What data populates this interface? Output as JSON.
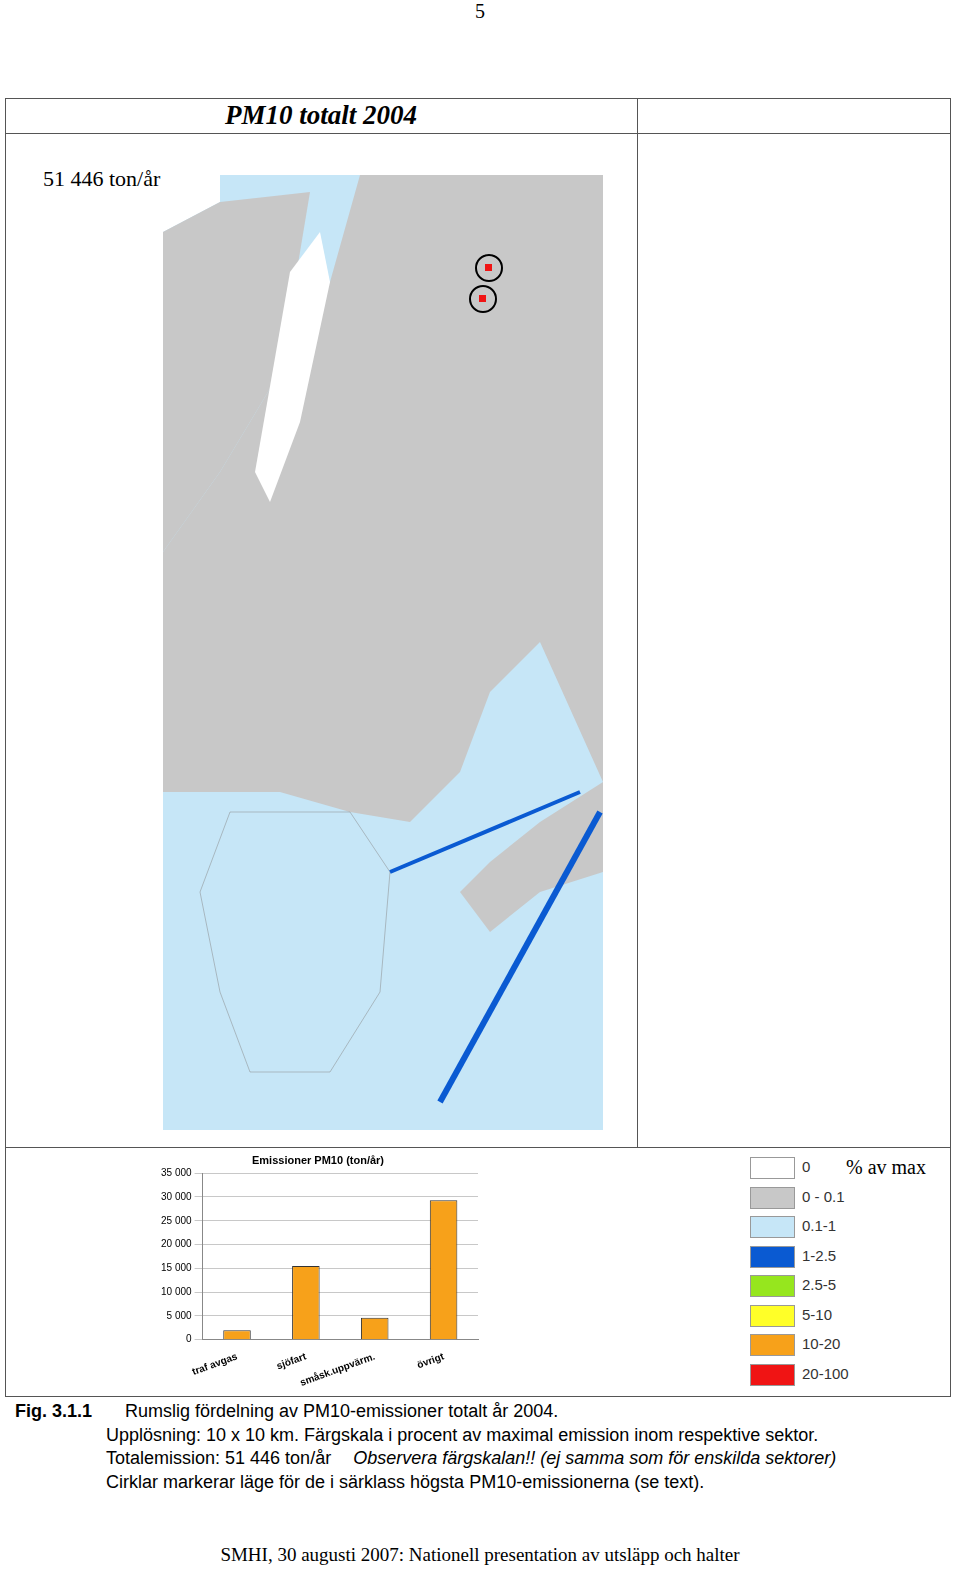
{
  "page_number": "5",
  "title": "PM10 totalt 2004",
  "total_label": "51 446 ton/år",
  "chart_data": {
    "type": "bar",
    "title": "Emissioner PM10 (ton/år)",
    "categories": [
      "traf avgas",
      "sjöfart",
      "småsk.uppvärm.",
      "övrigt"
    ],
    "values": [
      2000,
      15500,
      4600,
      29300
    ],
    "color": "#f7a11a",
    "ylim": [
      0,
      35000
    ],
    "yticks": [
      0,
      {
        "value": 5000,
        "label": "5 000"
      },
      {
        "value": 10000,
        "label": "10 000"
      },
      {
        "value": 15000,
        "label": "15 000"
      },
      {
        "value": 20000,
        "label": "20 000"
      },
      {
        "value": 25000,
        "label": "25 000"
      },
      {
        "value": 30000,
        "label": "30 000"
      },
      {
        "value": 35000,
        "label": "35 000"
      }
    ],
    "grid": true
  },
  "color_scale": {
    "title": "% av max",
    "classes": [
      {
        "label": "0",
        "color": "#ffffff"
      },
      {
        "label": "0 - 0.1",
        "color": "#c8c8c8"
      },
      {
        "label": "0.1-1",
        "color": "#c6e6f7"
      },
      {
        "label": "1-2.5",
        "color": "#0a5ad2"
      },
      {
        "label": "2.5-5",
        "color": "#96e61e"
      },
      {
        "label": "5-10",
        "color": "#ffff28"
      },
      {
        "label": "10-20",
        "color": "#f7a11a"
      },
      {
        "label": "20-100",
        "color": "#f01414"
      }
    ]
  },
  "caption": {
    "label": "Fig. 3.1.1",
    "lines": [
      [
        {
          "text": "Rumslig fördelning av PM10-emissioner totalt år 2004.",
          "italic": false
        }
      ],
      [
        {
          "text": "Upplösning: 10 x 10 km.  Färgskala i procent av maximal emission inom respektive sektor.",
          "italic": false
        }
      ],
      [
        {
          "text": "Totalemission: 51 446 ton/år",
          "italic": false
        },
        {
          "text": "Observera färgskalan!! (ej samma som för enskilda sektorer)",
          "italic": true
        }
      ],
      [
        {
          "text": "Cirklar markerar läge för de i särklass högsta PM10-emissionerna (se text).",
          "italic": false
        }
      ]
    ]
  },
  "footer": "SMHI, 30 augusti 2007: Nationell presentation av utsläpp och halter"
}
